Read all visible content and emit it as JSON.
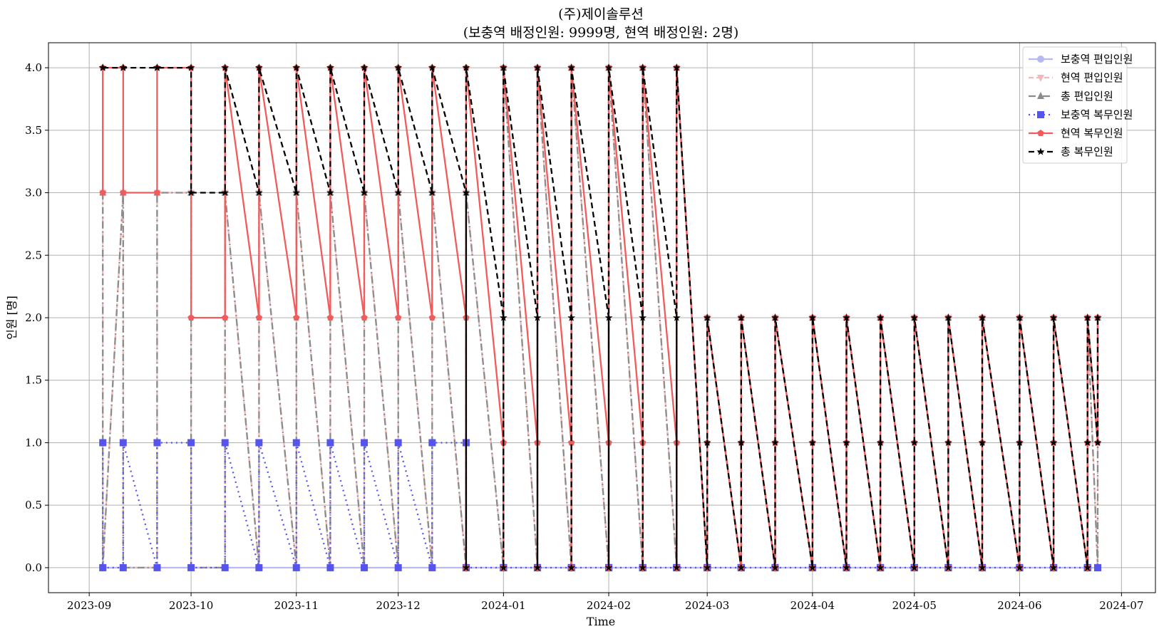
{
  "chart_data": {
    "type": "line",
    "title": "(주)제이솔루션",
    "subtitle": "(보충역 배정인원: 9999명, 현역 배정인원: 2명)",
    "xlabel": "Time",
    "ylabel": "인원 [명]",
    "x_ticks": [
      "2023-09",
      "2023-10",
      "2023-11",
      "2023-12",
      "2024-01",
      "2024-02",
      "2024-03",
      "2024-04",
      "2024-05",
      "2024-06",
      "2024-07"
    ],
    "y_ticks": [
      "0.0",
      "0.5",
      "1.0",
      "1.5",
      "2.0",
      "2.5",
      "3.0",
      "3.5",
      "4.0"
    ],
    "xlim": [
      "2023-08-20",
      "2024-07-11"
    ],
    "ylim": [
      -0.2,
      4.2
    ],
    "grid": true,
    "legend_position": "top-right",
    "x": [
      "2023-09-05",
      "2023-09-05",
      "2023-09-11",
      "2023-09-11",
      "2023-09-21",
      "2023-09-21",
      "2023-10-01",
      "2023-10-01",
      "2023-10-11",
      "2023-10-11",
      "2023-10-21",
      "2023-10-21",
      "2023-11-01",
      "2023-11-01",
      "2023-11-11",
      "2023-11-11",
      "2023-11-21",
      "2023-11-21",
      "2023-12-01",
      "2023-12-01",
      "2023-12-11",
      "2023-12-11",
      "2023-12-21",
      "2023-12-21",
      "2023-12-21",
      "2024-01-01",
      "2024-01-01",
      "2024-01-01",
      "2024-01-11",
      "2024-01-11",
      "2024-01-11",
      "2024-01-21",
      "2024-01-21",
      "2024-01-21",
      "2024-02-01",
      "2024-02-01",
      "2024-02-01",
      "2024-02-11",
      "2024-02-11",
      "2024-02-11",
      "2024-02-21",
      "2024-02-21",
      "2024-02-21",
      "2024-03-01",
      "2024-03-01",
      "2024-03-01",
      "2024-03-11",
      "2024-03-11",
      "2024-03-11",
      "2024-03-21",
      "2024-03-21",
      "2024-03-21",
      "2024-04-01",
      "2024-04-01",
      "2024-04-01",
      "2024-04-11",
      "2024-04-11",
      "2024-04-11",
      "2024-04-21",
      "2024-04-21",
      "2024-04-21",
      "2024-05-01",
      "2024-05-01",
      "2024-05-01",
      "2024-05-11",
      "2024-05-11",
      "2024-05-11",
      "2024-05-21",
      "2024-05-21",
      "2024-05-21",
      "2024-06-01",
      "2024-06-01",
      "2024-06-01",
      "2024-06-11",
      "2024-06-11",
      "2024-06-11",
      "2024-06-21",
      "2024-06-21",
      "2024-06-21",
      "2024-06-24",
      "2024-06-24"
    ],
    "series": [
      {
        "name": "보충역 편입인원",
        "color": "#b8b8f4",
        "dash": "",
        "marker": "circle",
        "values": [
          0,
          0,
          0,
          0,
          0,
          0,
          0,
          0,
          0,
          0,
          0,
          0,
          0,
          0,
          0,
          0,
          0,
          0,
          0,
          0,
          0,
          0,
          0,
          0,
          0,
          0,
          0,
          0,
          0,
          0,
          0,
          0,
          0,
          0,
          0,
          0,
          0,
          0,
          0,
          0,
          0,
          0,
          0,
          0,
          0,
          0,
          0,
          0,
          0,
          0,
          0,
          0,
          0,
          0,
          0,
          0,
          0,
          0,
          0,
          0,
          0,
          0,
          0,
          0,
          0,
          0,
          0,
          0,
          0,
          0,
          0,
          0,
          0,
          0,
          0,
          0,
          0,
          0,
          0,
          0,
          0
        ]
      },
      {
        "name": "현역 편입인원",
        "color": "#f4b8b8",
        "dash": "7 4",
        "marker": "triangle-down",
        "values": [
          3,
          0,
          3,
          0,
          0,
          3,
          3,
          0,
          0,
          3,
          0,
          3,
          0,
          3,
          0,
          3,
          0,
          3,
          0,
          3,
          0,
          3,
          0,
          0,
          3,
          0,
          0,
          4,
          0,
          0,
          4,
          0,
          0,
          4,
          0,
          0,
          4,
          0,
          0,
          4,
          0,
          0,
          4,
          0,
          0,
          2,
          0,
          0,
          2,
          0,
          0,
          2,
          0,
          0,
          2,
          0,
          0,
          2,
          0,
          0,
          2,
          0,
          0,
          2,
          0,
          0,
          2,
          0,
          0,
          2,
          0,
          0,
          2,
          0,
          0,
          2,
          0,
          0,
          2,
          0,
          2
        ]
      },
      {
        "name": "총 편입인원",
        "color": "#8c8c8c",
        "dash": "10 4 2 4",
        "marker": "triangle-up",
        "values": [
          3,
          0,
          3,
          0,
          0,
          3,
          3,
          0,
          0,
          3,
          0,
          3,
          0,
          3,
          0,
          3,
          0,
          3,
          0,
          3,
          0,
          3,
          0,
          0,
          3,
          0,
          0,
          4,
          0,
          0,
          4,
          0,
          0,
          4,
          0,
          0,
          4,
          0,
          0,
          4,
          0,
          0,
          4,
          0,
          0,
          2,
          0,
          0,
          2,
          0,
          0,
          2,
          0,
          0,
          2,
          0,
          0,
          2,
          0,
          0,
          2,
          0,
          0,
          2,
          0,
          0,
          2,
          0,
          0,
          2,
          0,
          0,
          2,
          0,
          0,
          2,
          0,
          0,
          2,
          0,
          2
        ]
      },
      {
        "name": "보충역 복무인원",
        "color": "#5555ee",
        "dash": "2 5",
        "marker": "square",
        "values": [
          1,
          0,
          0,
          1,
          0,
          1,
          1,
          0,
          0,
          1,
          0,
          1,
          0,
          1,
          0,
          1,
          0,
          1,
          0,
          1,
          0,
          1,
          1,
          0,
          0,
          0,
          0,
          0,
          0,
          0,
          0,
          0,
          0,
          0,
          0,
          0,
          0,
          0,
          0,
          0,
          0,
          0,
          0,
          0,
          0,
          0,
          0,
          0,
          0,
          0,
          0,
          0,
          0,
          0,
          0,
          0,
          0,
          0,
          0,
          0,
          0,
          0,
          0,
          0,
          0,
          0,
          0,
          0,
          0,
          0,
          0,
          0,
          0,
          0,
          0,
          0,
          0,
          0,
          0,
          0,
          0
        ]
      },
      {
        "name": "현역 복무인원",
        "color": "#f25b5b",
        "dash": "",
        "marker": "pentagon",
        "values": [
          3,
          4,
          4,
          3,
          3,
          4,
          4,
          2,
          2,
          4,
          2,
          4,
          2,
          4,
          2,
          4,
          2,
          4,
          2,
          4,
          2,
          4,
          2,
          0,
          4,
          1,
          0,
          4,
          1,
          0,
          4,
          1,
          0,
          4,
          1,
          0,
          4,
          1,
          0,
          4,
          1,
          0,
          4,
          0,
          1,
          2,
          0,
          1,
          2,
          0,
          1,
          2,
          0,
          1,
          2,
          0,
          1,
          2,
          0,
          1,
          2,
          0,
          1,
          2,
          0,
          1,
          2,
          0,
          1,
          2,
          0,
          1,
          2,
          0,
          1,
          2,
          0,
          1,
          2,
          1,
          2
        ]
      },
      {
        "name": "총 복무인원",
        "color": "#000000",
        "dash": "8 5",
        "marker": "star",
        "values": [
          4,
          4,
          4,
          4,
          4,
          4,
          4,
          3,
          3,
          4,
          3,
          4,
          3,
          4,
          3,
          4,
          3,
          4,
          3,
          4,
          3,
          4,
          3,
          0,
          4,
          2,
          0,
          4,
          2,
          0,
          4,
          2,
          0,
          4,
          2,
          0,
          4,
          2,
          0,
          4,
          2,
          0,
          4,
          0,
          1,
          2,
          0,
          1,
          2,
          0,
          1,
          2,
          0,
          1,
          2,
          0,
          1,
          2,
          0,
          1,
          2,
          0,
          1,
          2,
          0,
          1,
          2,
          0,
          1,
          2,
          0,
          1,
          2,
          0,
          1,
          2,
          0,
          1,
          2,
          1,
          2
        ]
      }
    ]
  }
}
